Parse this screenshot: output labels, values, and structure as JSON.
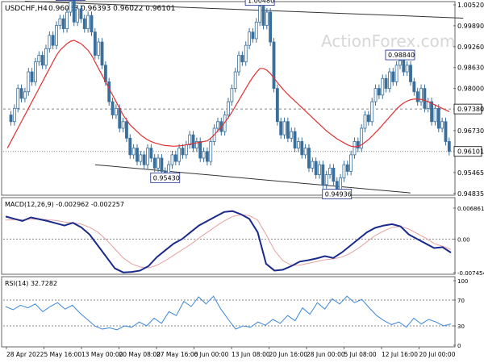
{
  "header": {
    "symbol_timeframe": "USDCHF,H4",
    "ohlc": "0.96063 0.96393 0.96022 0.96101"
  },
  "watermark": "ActionForex.com",
  "colors": {
    "candles": "#3a6f9c",
    "moving_average": "#e03030",
    "macd_line": "#1a2a8c",
    "macd_signal": "#e6a0a0",
    "rsi_line": "#3a86d8",
    "dashed_levels": "#888888",
    "frame": "#666666",
    "label_box_fill": "#ffffff",
    "label_box_stroke": "#1a2a8c"
  },
  "chart_data": [
    {
      "type": "candlestick",
      "title": "USDCHF,H4",
      "y_ticks": [
        "1.00520",
        "0.99890",
        "0.99260",
        "0.98630",
        "0.98000",
        "0.97380",
        "0.96730",
        "0.96101",
        "0.95465",
        "0.94835"
      ],
      "ylim": [
        0.9483,
        1.0052
      ],
      "x_ticks": [
        "28 Apr 2022",
        "5 May 16:00",
        "13 May 00:00",
        "20 May 08:00",
        "27 May 16:00",
        "6 Jun 00:00",
        "13 Jun 08:00",
        "20 Jun 16:00",
        "28 Jun 00:00",
        "5 Jul 08:00",
        "12 Jul 16:00",
        "20 Jul 00:00"
      ],
      "horizontal_levels": [
        {
          "value": 0.9738,
          "label": "0.97380",
          "style": "dashed"
        },
        {
          "value": 0.96101,
          "label": "0.96101",
          "style": "dotted"
        }
      ],
      "annotations": [
        {
          "label": "1.00630",
          "price": 1.0063
        },
        {
          "label": "1.00480",
          "price": 1.0048
        },
        {
          "label": "0.98840",
          "price": 0.9884
        },
        {
          "label": "0.95430",
          "price": 0.9543
        },
        {
          "label": "0.94936",
          "price": 0.94936
        }
      ],
      "trendlines": [
        {
          "from": [
            5,
            1.0063
          ],
          "to": [
            130,
            1.0012
          ]
        },
        {
          "from": [
            25,
            0.957
          ],
          "to": [
            115,
            0.9485
          ]
        }
      ],
      "series": [
        {
          "values": [
            0.972,
            0.97,
            0.974,
            0.98,
            0.977,
            0.979,
            0.985,
            0.982,
            0.988,
            0.99,
            0.987,
            0.992,
            0.996,
            0.993,
            0.999,
            1.001,
            0.998,
            1.003,
            1.0063,
            1.0,
            1.004,
            1.001,
            0.998,
            1.002,
            0.997,
            0.99,
            0.994,
            0.987,
            0.982,
            0.976,
            0.972,
            0.974,
            0.968,
            0.97,
            0.965,
            0.96,
            0.962,
            0.958,
            0.96,
            0.957,
            0.962,
            0.959,
            0.956,
            0.959,
            0.955,
            0.9543,
            0.957,
            0.96,
            0.958,
            0.962,
            0.96,
            0.963,
            0.966,
            0.962,
            0.964,
            0.959,
            0.961,
            0.958,
            0.964,
            0.968,
            0.97,
            0.967,
            0.972,
            0.976,
            0.98,
            0.985,
            0.99,
            0.988,
            0.993,
            0.997,
            0.995,
            1.0,
            1.0048,
            0.999,
            1.003,
            0.994,
            0.98,
            0.97,
            0.966,
            0.97,
            0.965,
            0.967,
            0.962,
            0.964,
            0.96,
            0.962,
            0.956,
            0.958,
            0.954,
            0.957,
            0.951,
            0.954,
            0.956,
            0.952,
            0.9494,
            0.953,
            0.957,
            0.955,
            0.96,
            0.964,
            0.962,
            0.968,
            0.972,
            0.97,
            0.976,
            0.98,
            0.978,
            0.983,
            0.98,
            0.985,
            0.982,
            0.987,
            0.9884,
            0.985,
            0.987,
            0.982,
            0.979,
            0.976,
            0.98,
            0.974,
            0.976,
            0.97,
            0.974,
            0.968,
            0.97,
            0.964,
            0.961
          ]
        },
        {
          "name": "moving_average",
          "values": [
            0.962,
            0.964,
            0.966,
            0.968,
            0.97,
            0.972,
            0.974,
            0.976,
            0.978,
            0.98,
            0.982,
            0.984,
            0.986,
            0.988,
            0.99,
            0.9915,
            0.9925,
            0.9935,
            0.9942,
            0.9945,
            0.994,
            0.9935,
            0.9925,
            0.9915,
            0.99,
            0.988,
            0.986,
            0.984,
            0.982,
            0.98,
            0.978,
            0.976,
            0.974,
            0.972,
            0.9705,
            0.969,
            0.968,
            0.967,
            0.966,
            0.9652,
            0.9645,
            0.964,
            0.9636,
            0.9633,
            0.963,
            0.9628,
            0.9627,
            0.9626,
            0.9626,
            0.9627,
            0.9628,
            0.963,
            0.9632,
            0.9634,
            0.9636,
            0.9638,
            0.964,
            0.9642,
            0.965,
            0.966,
            0.9672,
            0.9684,
            0.9698,
            0.9712,
            0.9728,
            0.9746,
            0.9764,
            0.9782,
            0.98,
            0.9818,
            0.9834,
            0.9848,
            0.986,
            0.986,
            0.9855,
            0.9845,
            0.9832,
            0.9818,
            0.9805,
            0.9793,
            0.9782,
            0.9772,
            0.9762,
            0.9752,
            0.9742,
            0.9732,
            0.9722,
            0.9712,
            0.9702,
            0.9692,
            0.9682,
            0.9672,
            0.9664,
            0.9656,
            0.9648,
            0.9642,
            0.9636,
            0.963,
            0.9626,
            0.9624,
            0.9625,
            0.963,
            0.9638,
            0.9646,
            0.9656,
            0.9667,
            0.9678,
            0.969,
            0.9702,
            0.9714,
            0.9726,
            0.9738,
            0.9748,
            0.9756,
            0.9762,
            0.9766,
            0.9768,
            0.9768,
            0.9767,
            0.9764,
            0.976,
            0.9755,
            0.975,
            0.9745,
            0.974,
            0.9735,
            0.973
          ]
        }
      ]
    },
    {
      "type": "line",
      "title": "MACD(12,26,9) -0.002962 -0.002257",
      "y_ticks": [
        "0.006861",
        "0.00",
        "-0.007454"
      ],
      "ylim": [
        -0.007454,
        0.006861
      ],
      "series": [
        {
          "values": [
            0.005,
            0.0045,
            0.004,
            0.0048,
            0.0044,
            0.004,
            0.0035,
            0.003,
            0.0036,
            0.0026,
            0.001,
            -0.0015,
            -0.004,
            -0.0065,
            -0.0074,
            -0.0073,
            -0.007,
            -0.006,
            -0.004,
            -0.0025,
            -0.001,
            0.0,
            0.0015,
            0.003,
            0.004,
            0.005,
            0.006,
            0.0062,
            0.0055,
            0.0045,
            0.0015,
            -0.0055,
            -0.007,
            -0.0068,
            -0.006,
            -0.005,
            -0.0047,
            -0.0043,
            -0.0038,
            -0.0042,
            -0.003,
            -0.0015,
            0.0,
            0.0015,
            0.0025,
            0.003,
            0.0033,
            0.0028,
            0.001,
            0.0,
            -0.001,
            -0.002,
            -0.0018,
            -0.003
          ]
        },
        {
          "values": [
            0.0042,
            0.0043,
            0.0043,
            0.0044,
            0.0044,
            0.0043,
            0.0041,
            0.0038,
            0.0036,
            0.0033,
            0.0026,
            0.0015,
            -0.0002,
            -0.0022,
            -0.0042,
            -0.0055,
            -0.0062,
            -0.0064,
            -0.0058,
            -0.0048,
            -0.0036,
            -0.0024,
            -0.0012,
            0.0002,
            0.0015,
            0.0028,
            0.004,
            0.005,
            0.0054,
            0.0052,
            0.0042,
            0.001,
            -0.0025,
            -0.0048,
            -0.0058,
            -0.0058,
            -0.0054,
            -0.005,
            -0.0046,
            -0.0044,
            -0.004,
            -0.0032,
            -0.002,
            -0.0006,
            0.0008,
            0.0018,
            0.0026,
            0.0028,
            0.0022,
            0.0012,
            0.0002,
            -0.001,
            -0.0016,
            -0.0023
          ]
        }
      ]
    },
    {
      "type": "line",
      "title": "RSI(14) 32.7282",
      "y_ticks": [
        "100",
        "70",
        "30",
        "0"
      ],
      "ylim": [
        0,
        100
      ],
      "series": [
        {
          "values": [
            60,
            55,
            62,
            58,
            64,
            52,
            60,
            66,
            56,
            62,
            50,
            40,
            30,
            25,
            27,
            24,
            30,
            28,
            36,
            30,
            42,
            34,
            52,
            46,
            68,
            60,
            75,
            64,
            76,
            56,
            40,
            25,
            30,
            28,
            36,
            31,
            40,
            34,
            46,
            38,
            58,
            48,
            66,
            56,
            72,
            64,
            76,
            66,
            71,
            58,
            46,
            38,
            32,
            36,
            28,
            42,
            33,
            40,
            36,
            30,
            33
          ]
        }
      ]
    }
  ]
}
